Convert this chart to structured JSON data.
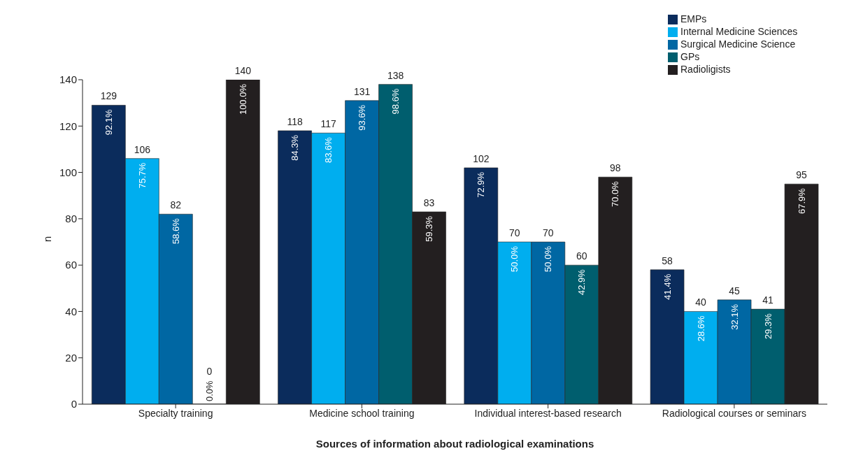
{
  "chart_data": {
    "type": "bar",
    "xlabel": "Sources of information about radiological examinations",
    "ylabel": "n",
    "categories": [
      "Specialty training",
      "Medicine school training",
      "Individual interest-based research",
      "Radiological courses or seminars"
    ],
    "series": [
      {
        "name": "EMPs",
        "color": "#0b2c5c",
        "values": [
          129,
          118,
          102,
          58
        ]
      },
      {
        "name": "Internal Medicine Sciences",
        "color": "#00aeef",
        "values": [
          106,
          117,
          70,
          40
        ]
      },
      {
        "name": "Surgical Medicine Science",
        "color": "#0067a3",
        "values": [
          82,
          131,
          70,
          45
        ]
      },
      {
        "name": "GPs",
        "color": "#005e6e",
        "values": [
          0,
          138,
          60,
          41
        ]
      },
      {
        "name": "Radioligists",
        "color": "#231f20",
        "values": [
          140,
          83,
          98,
          95
        ]
      }
    ],
    "annotations": [
      "92.1%",
      "84.3%",
      "72.9%",
      "41.4%",
      "75.7%",
      "83.6%",
      "50.0%",
      "28.6%",
      "58.6%",
      "93.6%",
      "50.0%",
      "32.1%",
      "0.0%",
      "98.6%",
      "42.9%",
      "29.3%",
      "100.0%",
      "59.3%",
      "70.0%",
      "67.9%"
    ],
    "ylim": [
      0,
      140
    ],
    "yticks": [
      0,
      20,
      40,
      60,
      80,
      100,
      120,
      140
    ],
    "grid": false,
    "legend": "top right",
    "data_labels": true
  }
}
